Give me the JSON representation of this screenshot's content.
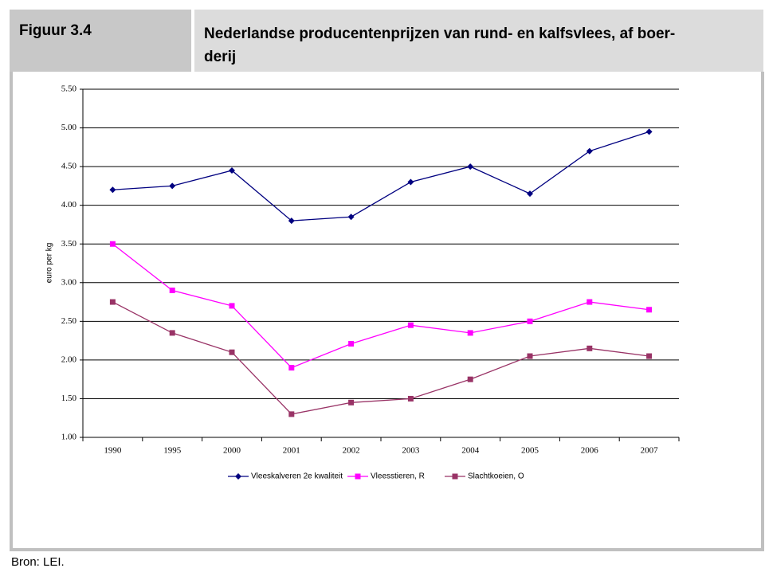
{
  "figure_label": "Figuur 3.4",
  "title_lines": [
    "Nederlandse producentenprijzen van rund- en kalfsvlees, af boer-",
    "derij"
  ],
  "source": "Bron: LEI.",
  "chart_data": {
    "type": "line",
    "y_label": "euro per kg",
    "categories": [
      "1990",
      "1995",
      "2000",
      "2001",
      "2002",
      "2003",
      "2004",
      "2005",
      "2006",
      "2007"
    ],
    "series": [
      {
        "name": "Vleeskalveren 2e kwaliteit",
        "color": "#000080",
        "marker": "diamond",
        "values": [
          4.2,
          4.25,
          4.45,
          3.8,
          3.85,
          4.3,
          4.5,
          4.15,
          4.7,
          4.95
        ]
      },
      {
        "name": "Vleesstieren, R",
        "color": "#ff00ff",
        "marker": "square",
        "values": [
          3.5,
          2.9,
          2.7,
          1.9,
          2.21,
          2.45,
          2.35,
          2.5,
          2.75,
          2.65
        ]
      },
      {
        "name": "Slachtkoeien, O",
        "color": "#993366",
        "marker": "square",
        "values": [
          2.75,
          2.35,
          2.1,
          1.3,
          1.45,
          1.5,
          1.75,
          2.05,
          2.15,
          2.05
        ]
      }
    ],
    "ylim": [
      1.0,
      5.5
    ],
    "yticks": [
      {
        "value": 1.0,
        "label": "1.00"
      },
      {
        "value": 1.5,
        "label": "1.50"
      },
      {
        "value": 2.0,
        "label": "2.00"
      },
      {
        "value": 2.5,
        "label": "2.50"
      },
      {
        "value": 3.0,
        "label": "3.00"
      },
      {
        "value": 3.5,
        "label": "3.50"
      },
      {
        "value": 4.0,
        "label": "4.00"
      },
      {
        "value": 4.5,
        "label": "4.50"
      },
      {
        "value": 5.0,
        "label": "5.00"
      },
      {
        "value": 5.5,
        "label": "5.50"
      }
    ],
    "grid": true,
    "legend": "bottom"
  }
}
